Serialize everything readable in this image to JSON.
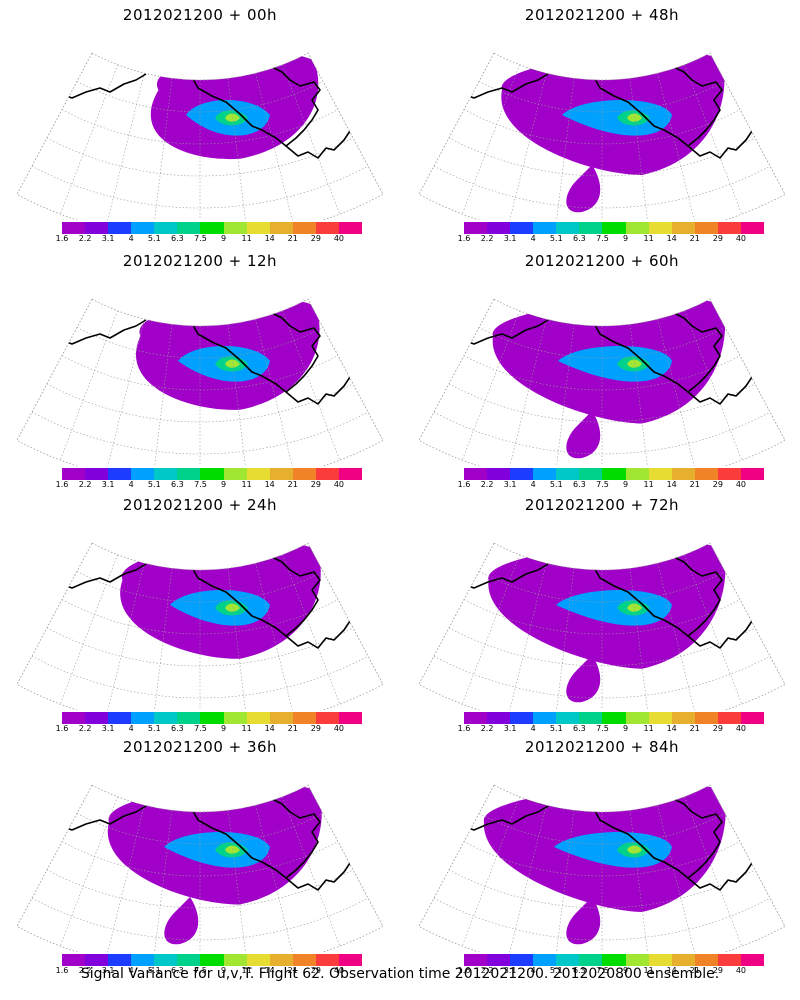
{
  "caption": "Signal Variance for u,v,T. Flight 62. Observation time 2012021200. 2012020800 ensemble.",
  "colorbar": {
    "tick_labels": [
      "1.6",
      "2.2",
      "3.1",
      "4",
      "5.1",
      "6.3",
      "7.5",
      "9",
      "11",
      "14",
      "21",
      "29",
      "40"
    ],
    "colors": [
      "#a000c8",
      "#8200dc",
      "#1e3cff",
      "#00a0ff",
      "#00c8c8",
      "#00d28c",
      "#00dc00",
      "#a0e632",
      "#e6dc32",
      "#e6af2d",
      "#f08228",
      "#fa3c3c",
      "#f00082"
    ]
  },
  "panels": [
    {
      "title": "2012021200 + 00h",
      "lead_hours": 0
    },
    {
      "title": "2012021200 + 48h",
      "lead_hours": 48
    },
    {
      "title": "2012021200 + 12h",
      "lead_hours": 12
    },
    {
      "title": "2012021200 + 60h",
      "lead_hours": 60
    },
    {
      "title": "2012021200 + 24h",
      "lead_hours": 24
    },
    {
      "title": "2012021200 + 72h",
      "lead_hours": 72
    },
    {
      "title": "2012021200 + 36h",
      "lead_hours": 36
    },
    {
      "title": "2012021200 + 84h",
      "lead_hours": 84
    }
  ]
}
